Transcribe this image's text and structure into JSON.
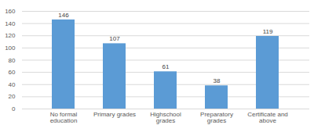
{
  "chart_data": {
    "type": "bar",
    "categories": [
      "No formal education",
      "Primary grades",
      "Highschool grades",
      "Preparatory grades",
      "Certificate and above"
    ],
    "values": [
      146,
      107,
      61,
      38,
      119
    ],
    "color": "#5b9bd5",
    "ylim": [
      0,
      160
    ],
    "yticks": [
      0,
      20,
      40,
      60,
      80,
      100,
      120,
      140,
      160
    ],
    "grid": true,
    "data_labels": true
  }
}
